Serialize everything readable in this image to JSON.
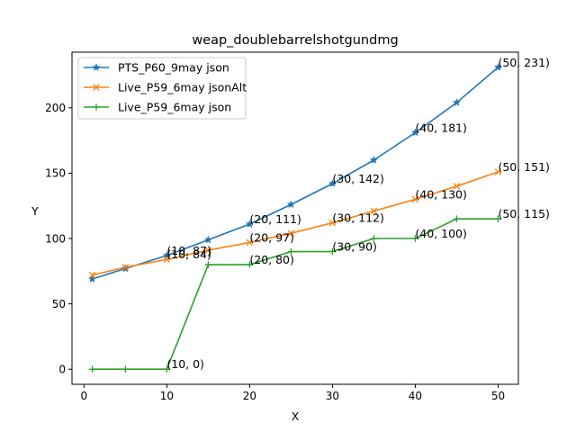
{
  "chart_data": {
    "type": "line",
    "title": "weap_doublebarrelshotgundmg",
    "xlabel": "X",
    "ylabel": "Y",
    "xlim": [
      -1.45,
      52.45
    ],
    "ylim": [
      -11.55,
      242.55
    ],
    "xticks": [
      0,
      10,
      20,
      30,
      40,
      50
    ],
    "yticks": [
      0,
      50,
      100,
      150,
      200
    ],
    "grid": false,
    "legend": "top-left",
    "series": [
      {
        "name": "PTS_P60_9may json",
        "color": "#1f77b4",
        "marker": "star",
        "x": [
          1,
          5,
          10,
          15,
          20,
          25,
          30,
          35,
          40,
          45,
          50
        ],
        "y": [
          69,
          77,
          87,
          99,
          111,
          126,
          142,
          160,
          181,
          204,
          231
        ]
      },
      {
        "name": "Live_P59_6may jsonAlt",
        "color": "#ff7f0e",
        "marker": "x",
        "x": [
          1,
          5,
          10,
          15,
          20,
          25,
          30,
          35,
          40,
          45,
          50
        ],
        "y": [
          72,
          78,
          84,
          91,
          97,
          104,
          112,
          121,
          130,
          140,
          151
        ]
      },
      {
        "name": "Live_P59_6may json",
        "color": "#2ca02c",
        "marker": "plus",
        "x": [
          1,
          5,
          10,
          15,
          20,
          25,
          30,
          35,
          40,
          45,
          50
        ],
        "y": [
          0,
          0,
          0,
          80,
          80,
          90,
          90,
          100,
          100,
          115,
          115
        ]
      }
    ],
    "annotations": [
      {
        "text": "(10, 87)",
        "x": 10,
        "y": 87
      },
      {
        "text": "(20, 111)",
        "x": 20,
        "y": 111
      },
      {
        "text": "(30, 142)",
        "x": 30,
        "y": 142
      },
      {
        "text": "(40, 181)",
        "x": 40,
        "y": 181
      },
      {
        "text": "(50, 231)",
        "x": 50,
        "y": 231
      },
      {
        "text": "(10, 84)",
        "x": 10,
        "y": 84
      },
      {
        "text": "(20, 97)",
        "x": 20,
        "y": 97
      },
      {
        "text": "(30, 112)",
        "x": 30,
        "y": 112
      },
      {
        "text": "(40, 130)",
        "x": 40,
        "y": 130
      },
      {
        "text": "(50, 151)",
        "x": 50,
        "y": 151
      },
      {
        "text": "(10, 0)",
        "x": 10,
        "y": 0
      },
      {
        "text": "(20, 80)",
        "x": 20,
        "y": 80
      },
      {
        "text": "(30, 90)",
        "x": 30,
        "y": 90
      },
      {
        "text": "(40, 100)",
        "x": 40,
        "y": 100
      },
      {
        "text": "(50, 115)",
        "x": 50,
        "y": 115
      }
    ]
  }
}
